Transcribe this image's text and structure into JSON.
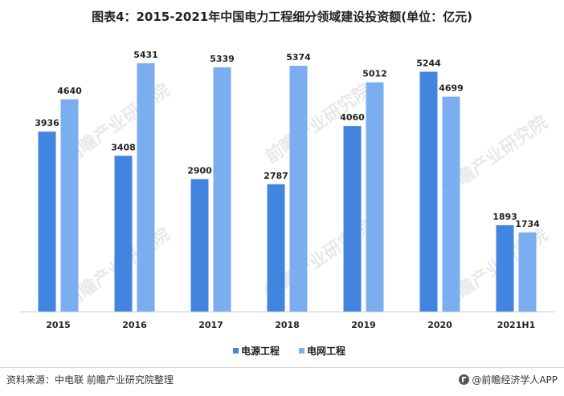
{
  "title": "图表4：2015-2021年中国电力工程细分领域建设投资额(单位：亿元)",
  "source": "资料来源：中电联 前瞻产业研究院整理",
  "brand": "@前瞻经济学人APP",
  "watermark": "前瞻产业研究院",
  "colors": {
    "series1": "#4285e0",
    "series2": "#7aaef0",
    "axis": "#cccccc",
    "watermark": "#cfcfcf"
  },
  "chart_data": {
    "type": "bar",
    "title": "图表4：2015-2021年中国电力工程细分领域建设投资额(单位：亿元)",
    "categories": [
      "2015",
      "2016",
      "2017",
      "2018",
      "2019",
      "2020",
      "2021H1"
    ],
    "series": [
      {
        "name": "电源工程",
        "values": [
          3936,
          3408,
          2900,
          2787,
          4060,
          5244,
          1893
        ]
      },
      {
        "name": "电网工程",
        "values": [
          4640,
          5431,
          5339,
          5374,
          5012,
          4699,
          1734
        ]
      }
    ],
    "ylim": [
      0,
      5900
    ],
    "legend_position": "bottom",
    "grid": false,
    "data_labels": true
  }
}
